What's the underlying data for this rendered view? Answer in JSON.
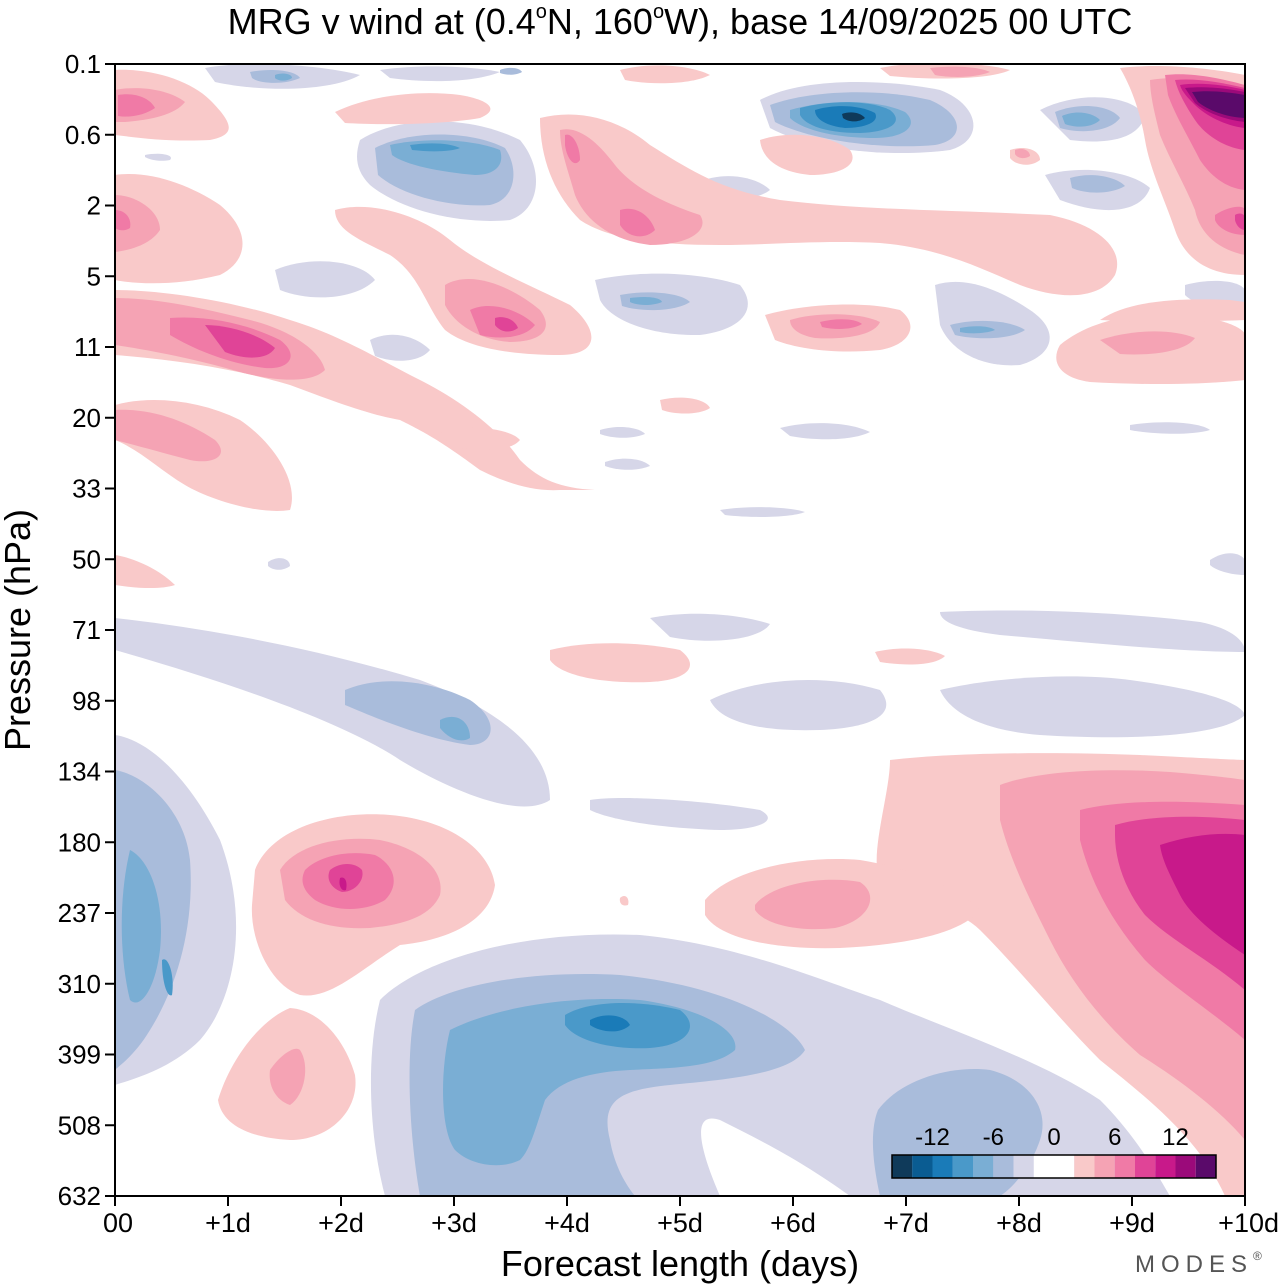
{
  "chart_data": {
    "type": "heatmap",
    "title": "MRG v wind at (0.4°N, 160°W),  base 14/09/2025  00 UTC",
    "title_parts": {
      "prefix": "MRG v wind at (0.4",
      "o1": "o",
      "mid": "N, 160",
      "o2": "o",
      "suffix": "W),  base 14/09/2025  00 UTC"
    },
    "xlabel": "Forecast length (days)",
    "ylabel": "Pressure (hPa)",
    "x_ticks": [
      "00",
      "+1d",
      "+2d",
      "+3d",
      "+4d",
      "+5d",
      "+6d",
      "+7d",
      "+8d",
      "+9d",
      "+10d"
    ],
    "xlim": [
      0,
      10
    ],
    "y_ticks": [
      "0.1",
      "0.6",
      "2",
      "5",
      "11",
      "20",
      "33",
      "50",
      "71",
      "98",
      "134",
      "180",
      "237",
      "310",
      "399",
      "508",
      "632"
    ],
    "y_scale": "log-pressure (top = 0.1 hPa, bottom = 632 hPa)",
    "colorbar": {
      "labels": [
        "-12",
        "-6",
        "0",
        "6",
        "12"
      ],
      "label_positions": [
        -12,
        -6,
        0,
        6,
        12
      ],
      "level_step": 2,
      "colors": [
        "#0f3a5a",
        "#0a5c92",
        "#1a7bb8",
        "#4a99c9",
        "#7aaed4",
        "#a9bcdb",
        "#d6d6e8",
        "#ffffff",
        "#ffffff",
        "#f9c9c9",
        "#f5a3b4",
        "#f07aa6",
        "#e04497",
        "#c8198a",
        "#9b0a7a",
        "#5a0a6a"
      ],
      "ranges": [
        [
          -16,
          -14
        ],
        [
          -14,
          -12
        ],
        [
          -12,
          -10
        ],
        [
          -10,
          -8
        ],
        [
          -8,
          -6
        ],
        [
          -6,
          -4
        ],
        [
          -4,
          -2
        ],
        [
          -2,
          0
        ],
        [
          0,
          2
        ],
        [
          2,
          4
        ],
        [
          4,
          6
        ],
        [
          6,
          8
        ],
        [
          8,
          10
        ],
        [
          10,
          12
        ],
        [
          12,
          14
        ],
        [
          14,
          16
        ]
      ]
    },
    "features": [
      {
        "name": "upper-trop-positive-max",
        "x": 9.8,
        "p": 200,
        "value": 12
      },
      {
        "name": "lower-trop-negative-min",
        "x": 4.5,
        "p": 360,
        "value": -10
      },
      {
        "name": "positive-centre-2d",
        "x": 2.0,
        "p": 210,
        "value": 8
      },
      {
        "name": "stratosphere-negative-min",
        "x": 6.5,
        "p": 0.4,
        "value": -14
      },
      {
        "name": "upper-strat-positive-max",
        "x": 9.8,
        "p": 0.35,
        "value": 16
      }
    ]
  },
  "brand": {
    "logo_text": "MODES",
    "reg": "®"
  }
}
